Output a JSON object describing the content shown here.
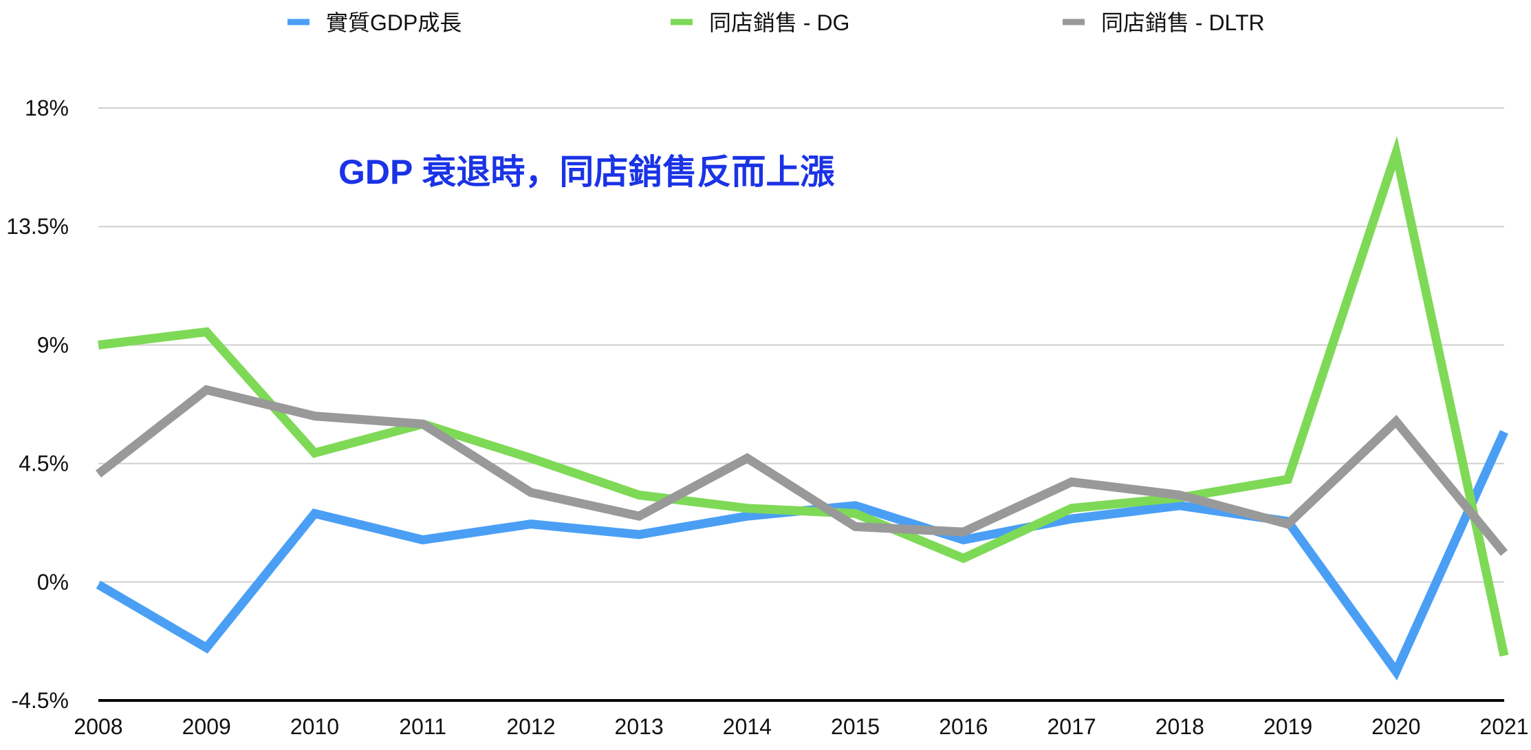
{
  "chart_data": {
    "type": "line",
    "title": "",
    "xlabel": "",
    "ylabel": "",
    "x": [
      "2008",
      "2009",
      "2010",
      "2011",
      "2012",
      "2013",
      "2014",
      "2015",
      "2016",
      "2017",
      "2018",
      "2019",
      "2020",
      "2021"
    ],
    "ylim": [
      -4.5,
      18
    ],
    "y_ticks": [
      -4.5,
      0,
      4.5,
      9,
      13.5,
      18
    ],
    "y_tick_labels": [
      "-4.5%",
      "0%",
      "4.5%",
      "9%",
      "13.5%",
      "18%"
    ],
    "grid": true,
    "legend_position": "top",
    "series": [
      {
        "name": "實質GDP成長",
        "color": "#4a9ff5",
        "values": [
          -0.1,
          -2.5,
          2.6,
          1.6,
          2.2,
          1.8,
          2.5,
          2.9,
          1.6,
          2.4,
          2.9,
          2.3,
          -3.4,
          5.7
        ]
      },
      {
        "name": "同店銷售 - DG",
        "color": "#7ed957",
        "values": [
          9.0,
          9.5,
          4.9,
          6.0,
          4.7,
          3.3,
          2.8,
          2.6,
          0.9,
          2.8,
          3.2,
          3.9,
          16.3,
          -2.8
        ]
      },
      {
        "name": "同店銷售 - DLTR",
        "color": "#999999",
        "values": [
          4.1,
          7.3,
          6.3,
          6.0,
          3.4,
          2.5,
          4.7,
          2.1,
          1.9,
          3.8,
          3.3,
          2.2,
          6.1,
          1.1
        ]
      }
    ],
    "annotations": [
      {
        "text": "GDP 衰退時，同店銷售反而上漲",
        "color": "#1a33e6"
      }
    ]
  }
}
